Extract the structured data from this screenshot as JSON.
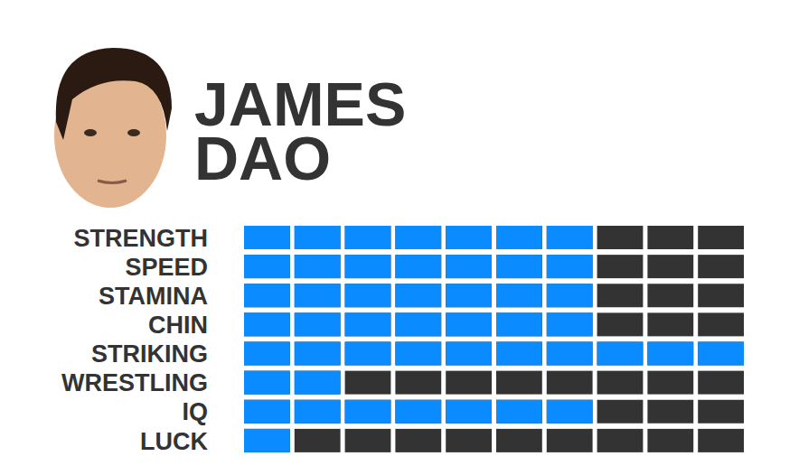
{
  "chart_data": {
    "type": "bar",
    "title": "JAMES DAO",
    "orientation": "horizontal",
    "categories": [
      "STRENGTH",
      "SPEED",
      "STAMINA",
      "CHIN",
      "STRIKING",
      "WRESTLING",
      "IQ",
      "LUCK"
    ],
    "values": [
      7,
      7,
      7,
      7,
      10,
      2,
      7,
      1
    ],
    "color": "#0A8BFF",
    "xlim": [
      0,
      10
    ],
    "xticks": [
      0,
      1,
      2,
      3,
      4,
      5,
      6,
      7,
      8,
      9,
      10
    ],
    "tick_labels": "y"
  }
}
